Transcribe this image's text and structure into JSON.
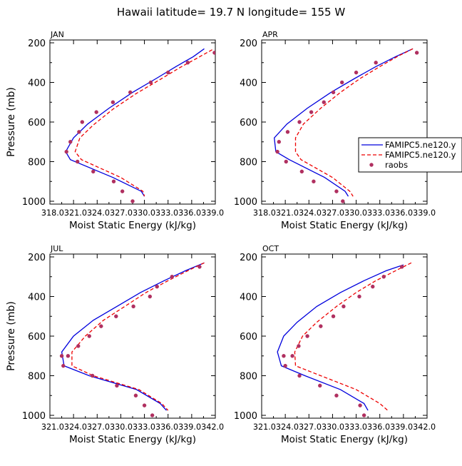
{
  "title": "Hawaii  latitude= 19.7 N longitude= 155 W",
  "legend": {
    "entries": [
      {
        "label": "FAMIPC5.ne120.y",
        "style": "solid",
        "color": "#0000dd"
      },
      {
        "label": "FAMIPC5.ne120.y",
        "style": "dashed",
        "color": "#ee0000"
      },
      {
        "label": "raobs",
        "style": "marker",
        "color": "#b03060"
      }
    ]
  },
  "chart_data": [
    {
      "type": "line",
      "panel_label": "JAN",
      "xlabel": "Moist Static Energy (kJ/kg)",
      "ylabel": "Pressure (mb)",
      "xlim": [
        318,
        339
      ],
      "ylim": [
        1000,
        200
      ],
      "x_tick_labels": [
        "318.0",
        "321.0",
        "324.0",
        "327.0",
        "330.0",
        "333.0",
        "336.0",
        "339.0"
      ],
      "y_tick_labels": [
        "200",
        "400",
        "600",
        "800",
        "1000"
      ],
      "series": [
        {
          "name": "FAMIPC5.ne120.y",
          "style": "solid",
          "x": [
            337.6,
            336.2,
            334.0,
            331.5,
            328.5,
            325.5,
            322.8,
            321.0,
            320.0,
            320.6,
            326.0,
            329.6,
            330.0
          ],
          "y": [
            230,
            270,
            320,
            380,
            450,
            530,
            610,
            680,
            750,
            790,
            880,
            950,
            975
          ]
        },
        {
          "name": "FAMIPC5.ne120.y",
          "style": "dashed",
          "x": [
            338.6,
            336.8,
            334.5,
            332.0,
            329.0,
            326.0,
            323.5,
            321.8,
            321.2,
            322.0,
            327.0,
            329.8,
            330.0
          ],
          "y": [
            235,
            275,
            325,
            385,
            455,
            535,
            615,
            680,
            750,
            790,
            880,
            950,
            975
          ]
        },
        {
          "name": "raobs",
          "style": "marker",
          "x": [
            338.9,
            335.5,
            333.0,
            330.8,
            328.2,
            326.0,
            323.9,
            322.1,
            321.7,
            320.6,
            320.1,
            321.5,
            323.5,
            326.1,
            327.2,
            328.5
          ],
          "y": [
            250,
            300,
            350,
            400,
            450,
            500,
            550,
            600,
            650,
            700,
            750,
            800,
            850,
            900,
            950,
            1000
          ]
        }
      ]
    },
    {
      "type": "line",
      "panel_label": "APR",
      "xlabel": "Moist Static Energy (kJ/kg)",
      "ylabel": "",
      "xlim": [
        318,
        339
      ],
      "ylim": [
        1000,
        200
      ],
      "x_tick_labels": [
        "318.0",
        "321.0",
        "324.0",
        "327.0",
        "330.0",
        "333.0",
        "336.0",
        "339.0"
      ],
      "y_tick_labels": [
        "200",
        "400",
        "600",
        "800",
        "1000"
      ],
      "series": [
        {
          "name": "FAMIPC5.ne120.y",
          "style": "solid",
          "x": [
            337.2,
            335.0,
            332.5,
            329.8,
            326.8,
            323.8,
            321.2,
            319.6,
            319.8,
            321.5,
            326.0,
            328.6,
            329.0
          ],
          "y": [
            230,
            270,
            320,
            380,
            450,
            530,
            610,
            680,
            750,
            790,
            880,
            950,
            975
          ]
        },
        {
          "name": "FAMIPC5.ne120.y",
          "style": "dashed",
          "x": [
            337.2,
            335.2,
            333.0,
            330.5,
            328.0,
            325.5,
            323.3,
            322.3,
            322.3,
            323.0,
            327.0,
            329.2,
            329.6
          ],
          "y": [
            230,
            270,
            320,
            380,
            450,
            530,
            610,
            680,
            750,
            790,
            880,
            950,
            975
          ]
        },
        {
          "name": "raobs",
          "style": "marker",
          "x": [
            337.7,
            332.5,
            330.0,
            328.2,
            327.1,
            325.9,
            324.3,
            322.8,
            321.3,
            320.2,
            320.0,
            321.1,
            323.1,
            324.6,
            327.5,
            328.3
          ],
          "y": [
            250,
            300,
            350,
            400,
            450,
            500,
            550,
            600,
            650,
            700,
            750,
            800,
            850,
            900,
            950,
            1000
          ]
        }
      ]
    },
    {
      "type": "line",
      "panel_label": "JUL",
      "xlabel": "Moist Static Energy (kJ/kg)",
      "ylabel": "Pressure (mb)",
      "xlim": [
        321,
        342
      ],
      "ylim": [
        1000,
        200
      ],
      "x_tick_labels": [
        "321.0",
        "324.0",
        "327.0",
        "330.0",
        "333.0",
        "336.0",
        "339.0",
        "342.0"
      ],
      "y_tick_labels": [
        "200",
        "400",
        "600",
        "800",
        "1000"
      ],
      "series": [
        {
          "name": "FAMIPC5.ne120.y",
          "style": "solid",
          "x": [
            340.6,
            338.2,
            335.5,
            332.5,
            329.5,
            326.5,
            324.0,
            322.5,
            322.8,
            326.0,
            332.0,
            335.0,
            335.8
          ],
          "y": [
            230,
            270,
            320,
            380,
            450,
            520,
            600,
            680,
            750,
            800,
            870,
            940,
            975
          ]
        },
        {
          "name": "FAMIPC5.ne120.y",
          "style": "dashed",
          "x": [
            340.6,
            338.5,
            336.0,
            333.2,
            330.5,
            327.8,
            325.5,
            323.8,
            323.8,
            326.5,
            332.3,
            335.2,
            336.0
          ],
          "y": [
            230,
            270,
            320,
            380,
            450,
            520,
            600,
            680,
            750,
            800,
            870,
            940,
            975
          ]
        },
        {
          "name": "raobs",
          "style": "marker",
          "x": [
            340.0,
            336.5,
            334.6,
            333.7,
            331.6,
            329.4,
            327.5,
            326.0,
            324.6,
            323.3,
            322.5,
            322.7,
            326.4,
            329.5,
            331.9,
            333.0,
            334.0
          ],
          "y": [
            250,
            300,
            350,
            400,
            450,
            500,
            550,
            600,
            650,
            700,
            700,
            750,
            800,
            850,
            900,
            950,
            1000
          ]
        }
      ]
    },
    {
      "type": "line",
      "panel_label": "OCT",
      "xlabel": "Moist Static Energy (kJ/kg)",
      "ylabel": "",
      "xlim": [
        321,
        342
      ],
      "ylim": [
        1000,
        200
      ],
      "x_tick_labels": [
        "321.0",
        "324.0",
        "327.0",
        "330.0",
        "333.0",
        "336.0",
        "339.0",
        "342.0"
      ],
      "y_tick_labels": [
        "200",
        "400",
        "600",
        "800",
        "1000"
      ],
      "series": [
        {
          "name": "FAMIPC5.ne120.y",
          "style": "solid",
          "x": [
            339.0,
            336.8,
            334.0,
            331.0,
            328.0,
            325.5,
            323.8,
            323.0,
            323.5,
            326.5,
            331.0,
            334.0,
            334.5
          ],
          "y": [
            240,
            270,
            320,
            380,
            450,
            530,
            600,
            680,
            750,
            800,
            870,
            940,
            975
          ]
        },
        {
          "name": "FAMIPC5.ne120.y",
          "style": "dashed",
          "x": [
            340.0,
            338.0,
            335.5,
            333.0,
            330.5,
            328.0,
            326.2,
            325.2,
            325.3,
            328.5,
            333.0,
            336.0,
            337.0
          ],
          "y": [
            230,
            270,
            320,
            380,
            450,
            530,
            600,
            680,
            750,
            800,
            870,
            940,
            975
          ]
        },
        {
          "name": "raobs",
          "style": "marker",
          "x": [
            338.8,
            336.5,
            335.1,
            333.4,
            331.4,
            330.1,
            328.5,
            326.8,
            325.7,
            324.9,
            323.8,
            324.0,
            325.8,
            328.4,
            330.5,
            333.5,
            334.0
          ],
          "y": [
            250,
            300,
            350,
            400,
            450,
            500,
            550,
            600,
            650,
            700,
            700,
            750,
            800,
            850,
            900,
            950,
            1000
          ]
        }
      ]
    }
  ]
}
